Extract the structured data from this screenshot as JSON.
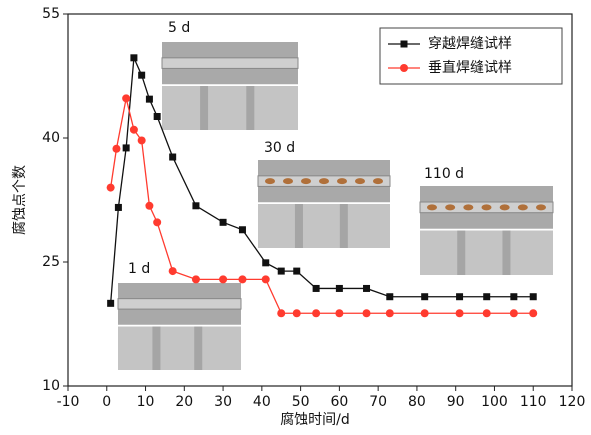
{
  "chart_data": {
    "type": "line",
    "x_label": "腐蚀时间/d",
    "y_label": "腐蚀点个数",
    "xlim": [
      -10,
      120
    ],
    "xticks": [
      -10,
      0,
      10,
      20,
      30,
      40,
      50,
      60,
      70,
      80,
      90,
      100,
      110,
      120
    ],
    "ylim": [
      10,
      55
    ],
    "yticks": [
      10,
      25,
      40,
      55
    ],
    "legend": "upper right",
    "series": [
      {
        "name": "穿越焊缝试样",
        "color": "#111111",
        "marker": "square",
        "x": [
          1,
          3,
          5,
          7,
          9,
          11,
          13,
          17,
          23,
          30,
          35,
          41,
          45,
          49,
          54,
          60,
          67,
          73,
          82,
          91,
          98,
          105,
          110
        ],
        "values": [
          20,
          31.6,
          38.8,
          49.7,
          47.6,
          44.7,
          42.6,
          37.7,
          31.8,
          29.8,
          28.9,
          24.9,
          23.9,
          23.9,
          21.8,
          21.8,
          21.8,
          20.8,
          20.8,
          20.8,
          20.8,
          20.8,
          20.8
        ]
      },
      {
        "name": "垂直焊缝试样",
        "color": "#ff3b2f",
        "marker": "circle",
        "x": [
          1,
          2.5,
          5,
          7,
          9,
          11,
          13,
          17,
          23,
          30,
          35,
          41,
          45,
          49,
          54,
          60,
          67,
          73,
          82,
          91,
          98,
          105,
          110
        ],
        "values": [
          34,
          38.7,
          44.8,
          41,
          39.7,
          31.8,
          29.8,
          23.9,
          22.9,
          22.9,
          22.9,
          22.9,
          18.8,
          18.8,
          18.8,
          18.8,
          18.8,
          18.8,
          18.8,
          18.8,
          18.8,
          18.8,
          18.8
        ]
      }
    ],
    "annotations": [
      "5 d",
      "30 d",
      "110 d",
      "1 d"
    ]
  }
}
